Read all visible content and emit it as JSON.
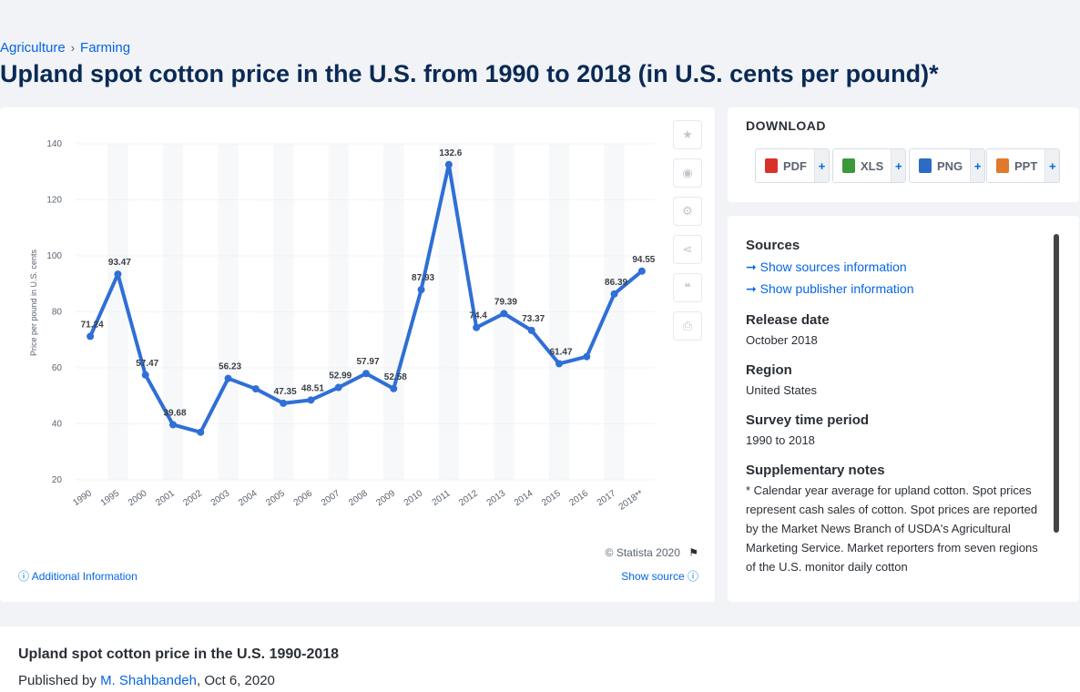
{
  "breadcrumb": {
    "items": [
      "Agriculture",
      "Farming"
    ],
    "separator": "›"
  },
  "page_title": "Upland spot cotton price in the U.S. from 1990 to 2018 (in U.S. cents per pound)*",
  "chart_data": {
    "type": "line",
    "title": "",
    "ylabel": "Price per pound in U.S. cents",
    "xlabel": "",
    "ylim": [
      20,
      140
    ],
    "yticks": [
      20,
      40,
      60,
      80,
      100,
      120,
      140
    ],
    "grid": true,
    "color": "#2f6fd6",
    "categories": [
      "1990",
      "1995",
      "2000",
      "2001",
      "2002",
      "2003",
      "2004",
      "2005",
      "2006",
      "2007",
      "2008",
      "2009",
      "2010",
      "2011",
      "2012",
      "2013",
      "2014",
      "2015",
      "2016",
      "2017",
      "2018**"
    ],
    "values": [
      71.24,
      93.47,
      57.47,
      39.68,
      37,
      56.23,
      52.5,
      47.35,
      48.51,
      52.99,
      57.97,
      52.58,
      87.93,
      132.6,
      74.4,
      79.39,
      73.37,
      61.47,
      64,
      86.39,
      94.55
    ],
    "data_labels": [
      "71.24",
      "93.47",
      "57.47",
      "39.68",
      "",
      "56.23",
      "",
      "47.35",
      "48.51",
      "52.99",
      "57.97",
      "52.58",
      "87.93",
      "132.6",
      "74.4",
      "79.39",
      "73.37",
      "61.47",
      "",
      "86.39",
      "94.55"
    ]
  },
  "copyright": "© Statista 2020",
  "additional_info": "Additional Information",
  "show_source": "Show source",
  "download": {
    "title": "DOWNLOAD",
    "buttons": [
      {
        "label": "PDF",
        "color": "#d9302c"
      },
      {
        "label": "XLS",
        "color": "#3a9a3a"
      },
      {
        "label": "PNG",
        "color": "#2b6cc4"
      },
      {
        "label": "PPT",
        "color": "#e07a2a"
      }
    ],
    "plus": "+"
  },
  "info": {
    "sources_heading": "Sources",
    "show_sources": "Show sources information",
    "show_publisher": "Show publisher information",
    "release_heading": "Release date",
    "release_value": "October 2018",
    "region_heading": "Region",
    "region_value": "United States",
    "survey_heading": "Survey time period",
    "survey_value": "1990 to 2018",
    "notes_heading": "Supplementary notes",
    "notes_text": "* Calendar year average for upland cotton. Spot prices represent cash sales of cotton. Spot prices are reported by the Market News Branch of USDA's Agricultural Marketing Service. Market reporters from seven regions of the U.S. monitor daily cotton"
  },
  "bottom": {
    "title": "Upland spot cotton price in the U.S. 1990-2018",
    "published_prefix": "Published by",
    "author": "M. Shahbandeh",
    "date": ", Oct 6, 2020"
  }
}
